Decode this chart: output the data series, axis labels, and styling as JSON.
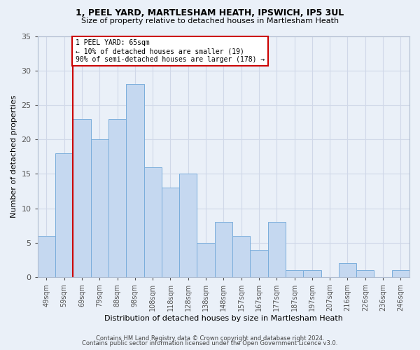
{
  "title1": "1, PEEL YARD, MARTLESHAM HEATH, IPSWICH, IP5 3UL",
  "title2": "Size of property relative to detached houses in Martlesham Heath",
  "xlabel": "Distribution of detached houses by size in Martlesham Heath",
  "ylabel": "Number of detached properties",
  "footnote1": "Contains HM Land Registry data © Crown copyright and database right 2024.",
  "footnote2": "Contains public sector information licensed under the Open Government Licence v3.0.",
  "categories": [
    "49sqm",
    "59sqm",
    "69sqm",
    "79sqm",
    "88sqm",
    "98sqm",
    "108sqm",
    "118sqm",
    "128sqm",
    "138sqm",
    "148sqm",
    "157sqm",
    "167sqm",
    "177sqm",
    "187sqm",
    "197sqm",
    "207sqm",
    "216sqm",
    "226sqm",
    "236sqm",
    "246sqm"
  ],
  "values": [
    6,
    18,
    23,
    20,
    23,
    28,
    16,
    13,
    15,
    5,
    8,
    6,
    4,
    8,
    1,
    1,
    0,
    2,
    1,
    0,
    1
  ],
  "bar_color": "#c5d8f0",
  "bar_edge_color": "#7aaddb",
  "grid_color": "#d0d8e8",
  "background_color": "#eaf0f8",
  "vline_x": 1.5,
  "vline_color": "#cc0000",
  "annotation_text": "1 PEEL YARD: 65sqm\n← 10% of detached houses are smaller (19)\n90% of semi-detached houses are larger (178) →",
  "annotation_box_color": "#ffffff",
  "annotation_box_edge": "#cc0000",
  "ylim": [
    0,
    35
  ],
  "yticks": [
    0,
    5,
    10,
    15,
    20,
    25,
    30,
    35
  ]
}
